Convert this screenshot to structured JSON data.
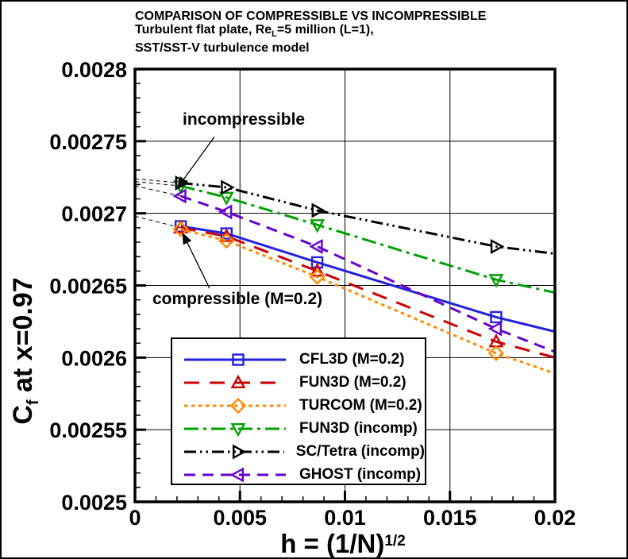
{
  "chart_data": {
    "type": "line",
    "title_line1": "COMPARISON OF COMPRESSIBLE VS INCOMPRESSIBLE",
    "title_line2": {
      "pre": "Turbulent flat plate, Re",
      "sub": "L",
      "post": "=5 million (L=1),"
    },
    "title_line3": "SST/SST-V turbulence model",
    "x_axis": {
      "title_pre": "h = (1/N)",
      "title_sup": "1/2",
      "lim": [
        0,
        0.02
      ],
      "major_ticks": [
        0,
        0.005,
        0.01,
        0.015,
        0.02
      ],
      "tick_labels": [
        "0",
        "0.005",
        "0.01",
        "0.015",
        "0.02"
      ],
      "minor_step": 0.001
    },
    "y_axis": {
      "title_pre": "C",
      "title_sub": "f",
      "title_post": " at x=0.97",
      "lim": [
        0.0025,
        0.0028
      ],
      "major_ticks": [
        0.0025,
        0.00255,
        0.0026,
        0.00265,
        0.0027,
        0.00275,
        0.0028
      ],
      "tick_labels": [
        "0.0025",
        "0.00255",
        "0.0026",
        "0.00265",
        "0.0027",
        "0.00275",
        "0.0028"
      ],
      "minor_step": 1e-05
    },
    "grid": "major",
    "legend_position": "inside lower-left, boxed",
    "x": [
      0.00218,
      0.00436,
      0.00868,
      0.0172
    ],
    "series": [
      {
        "name": "CFL3D (M=0.2)",
        "color": "#2222DD",
        "dash": "solid",
        "marker": "square",
        "y": [
          0.002691,
          0.002686,
          0.002666,
          0.002628
        ],
        "extend": {
          "x": 0.02,
          "y": 0.002618
        }
      },
      {
        "name": "FUN3D (M=0.2)",
        "color": "#CC0000",
        "dash": "long-dash",
        "marker": "triangle-up",
        "y": [
          0.00269,
          0.002684,
          0.00266,
          0.002611
        ],
        "extend": {
          "x": 0.02,
          "y": 0.0026
        }
      },
      {
        "name": "TURCOM (M=0.2)",
        "color": "#FF8A00",
        "dash": "dot",
        "marker": "diamond",
        "y": [
          0.002689,
          0.002681,
          0.002656,
          0.002603
        ],
        "extend": {
          "x": 0.02,
          "y": 0.002589
        }
      },
      {
        "name": "FUN3D (incomp)",
        "color": "#00A000",
        "dash": "dash-dot",
        "marker": "triangle-down",
        "y": [
          0.002719,
          0.002711,
          0.002692,
          0.002654
        ],
        "extend": {
          "x": 0.02,
          "y": 0.002645
        }
      },
      {
        "name": "SC/Tetra (incomp)",
        "color": "#000000",
        "dash": "dash-dot-dot",
        "marker": "triangle-right",
        "y": [
          0.002721,
          0.002718,
          0.002702,
          0.002677
        ],
        "extend": {
          "x": 0.02,
          "y": 0.002672
        }
      },
      {
        "name": "GHOST (incomp)",
        "color": "#6600CC",
        "dash": "dash",
        "marker": "triangle-left",
        "y": [
          0.002712,
          0.002701,
          0.002677,
          0.00262
        ],
        "extend": {
          "x": 0.02,
          "y": 0.002604
        }
      }
    ],
    "extrapolation_lines": [
      {
        "from": [
          0,
          0.002724
        ],
        "to": [
          0.00218,
          0.002721
        ]
      },
      {
        "from": [
          0,
          0.002722
        ],
        "to": [
          0.00218,
          0.002719
        ]
      },
      {
        "from": [
          0,
          0.002719
        ],
        "to": [
          0.00218,
          0.002712
        ]
      },
      {
        "from": [
          0,
          0.002698
        ],
        "to": [
          0.00218,
          0.00269
        ]
      }
    ],
    "annotations": [
      {
        "text": "incompressible",
        "text_pos": [
          0.00227,
          0.002764
        ],
        "arrow_from": [
          0.00378,
          0.002753
        ],
        "arrow_to": [
          0.00204,
          0.002718
        ]
      },
      {
        "text": "compressible (M=0.2)",
        "text_pos": [
          0.00083,
          0.00264
        ],
        "arrow_from": [
          0.00355,
          0.002648
        ],
        "arrow_to": [
          0.00228,
          0.002686
        ]
      }
    ]
  }
}
